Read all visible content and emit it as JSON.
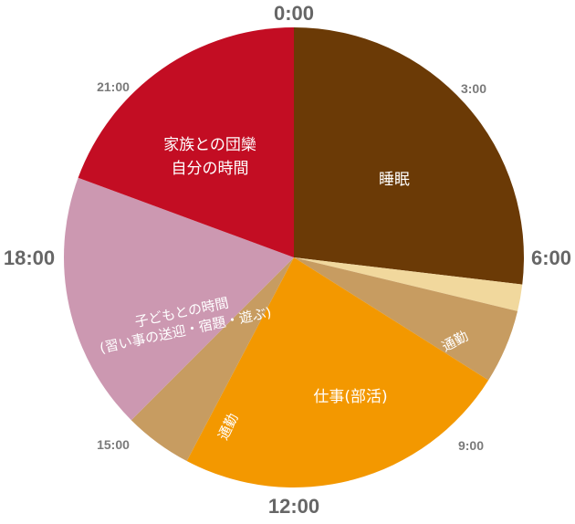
{
  "chart_data": {
    "type": "pie",
    "title": "",
    "unit": "hours",
    "clock_ticks": [
      "0:00",
      "3:00",
      "6:00",
      "9:00",
      "12:00",
      "15:00",
      "18:00",
      "21:00"
    ],
    "slices": [
      {
        "label_lines": [
          "睡眠"
        ],
        "start": 0.0,
        "end": 6.45,
        "hours": 6.45,
        "color": "#6b3a06"
      },
      {
        "label_lines": [],
        "start": 6.45,
        "end": 6.9,
        "hours": 0.45,
        "color": "#f1d89d"
      },
      {
        "label_lines": [
          "通勤"
        ],
        "start": 6.9,
        "end": 8.15,
        "hours": 1.25,
        "color": "#c79c61"
      },
      {
        "label_lines": [
          "仕事(部活)"
        ],
        "start": 8.15,
        "end": 13.85,
        "hours": 5.7,
        "color": "#f39800"
      },
      {
        "label_lines": [
          "通勤"
        ],
        "start": 13.85,
        "end": 15.0,
        "hours": 1.15,
        "color": "#c79c61"
      },
      {
        "label_lines": [
          "子どもとの時間",
          "(習い事の送迎・宿題・遊ぶ)"
        ],
        "start": 15.0,
        "end": 19.35,
        "hours": 4.35,
        "color": "#cc98b1"
      },
      {
        "label_lines": [
          "家族との団欒",
          "自分の時間"
        ],
        "start": 19.35,
        "end": 24.0,
        "hours": 4.65,
        "color": "#c30d23"
      }
    ]
  }
}
